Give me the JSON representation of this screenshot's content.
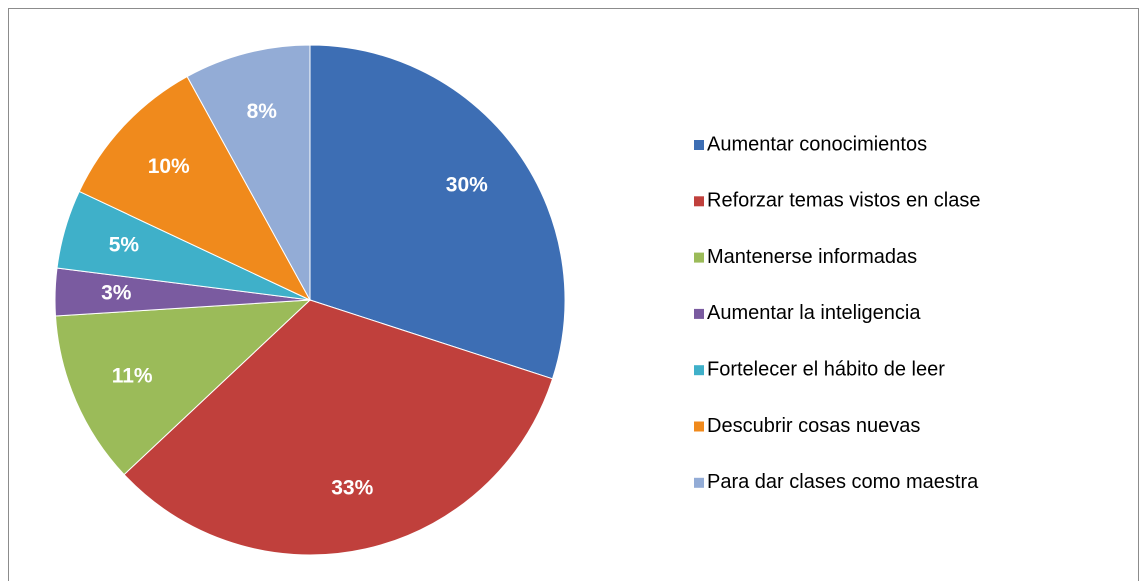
{
  "chart_data": {
    "type": "pie",
    "categories": [
      "Aumentar conocimientos",
      "Reforzar temas vistos en clase",
      "Mantenerse informadas",
      "Aumentar la inteligencia",
      "Fortelecer el hábito de leer",
      "Descubrir cosas nuevas",
      "Para dar clases como maestra"
    ],
    "values": [
      30,
      33,
      11,
      3,
      5,
      10,
      8
    ],
    "value_labels": [
      "30%",
      "33%",
      "11%",
      "3%",
      "5%",
      "10%",
      "8%"
    ],
    "colors": [
      "#3d6eb4",
      "#c0403c",
      "#9bbb59",
      "#7a5ba0",
      "#3fb0c9",
      "#f08a1c",
      "#93acd6"
    ],
    "legend": "right"
  }
}
